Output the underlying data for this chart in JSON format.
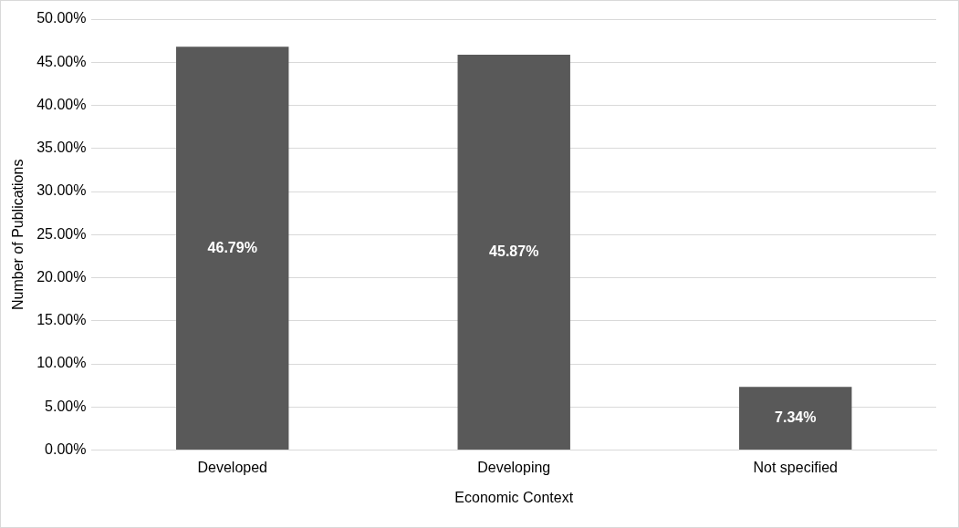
{
  "chart_data": {
    "type": "bar",
    "xlabel": "Economic Context",
    "ylabel": "Number of Publications",
    "categories": [
      "Developed",
      "Developing",
      "Not specified"
    ],
    "values": [
      46.79,
      45.87,
      7.34
    ],
    "color": "#595959",
    "value_labels": [
      "46.79%",
      "45.87%",
      "7.34%"
    ],
    "ylim": [
      0,
      50
    ],
    "yticks": [
      {
        "value": 0,
        "label": "0.00%"
      },
      {
        "value": 5,
        "label": "5.00%"
      },
      {
        "value": 10,
        "label": "10.00%"
      },
      {
        "value": 15,
        "label": "15.00%"
      },
      {
        "value": 20,
        "label": "20.00%"
      },
      {
        "value": 25,
        "label": "25.00%"
      },
      {
        "value": 30,
        "label": "30.00%"
      },
      {
        "value": 35,
        "label": "35.00%"
      },
      {
        "value": 40,
        "label": "40.00%"
      },
      {
        "value": 45,
        "label": "45.00%"
      },
      {
        "value": 50,
        "label": "50.00%"
      }
    ],
    "grid": "y",
    "legend": false
  }
}
